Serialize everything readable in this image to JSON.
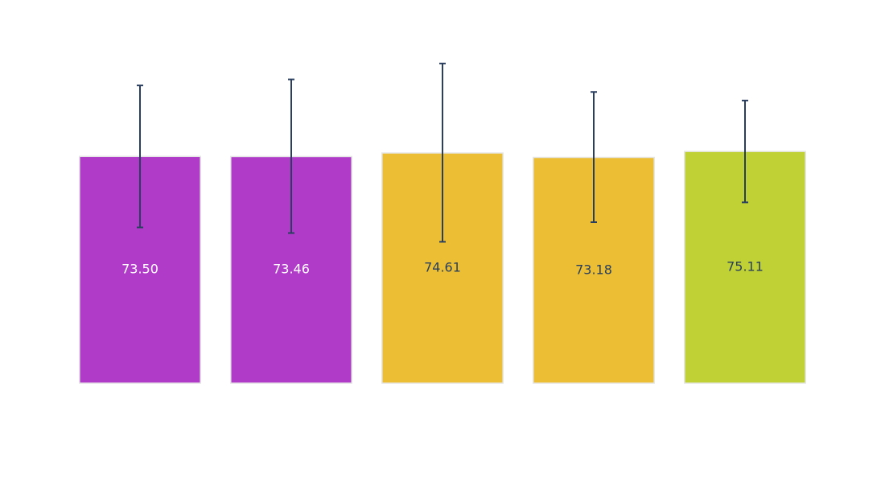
{
  "chart_data": {
    "type": "bar",
    "title": "",
    "xlabel": "",
    "ylabel": "",
    "show_axes": false,
    "grid": false,
    "ylim": [
      0,
      98.1
    ],
    "values": [
      73.5,
      73.46,
      74.61,
      73.18,
      75.11
    ],
    "labels": [
      "73.50",
      "73.46",
      "74.61",
      "73.18",
      "75.11"
    ],
    "error_minus": [
      23.0,
      24.8,
      28.8,
      21.0,
      16.5
    ],
    "error_plus": [
      23.0,
      25.0,
      29.0,
      21.2,
      16.5
    ],
    "colors": [
      "#b13bc9",
      "#b13bc9",
      "#ebbe33",
      "#ebbe33",
      "#bfd134"
    ],
    "label_colors": [
      "#ffffff",
      "#ffffff",
      "#2a3f5f",
      "#2a3f5f",
      "#2a3f5f"
    ]
  }
}
